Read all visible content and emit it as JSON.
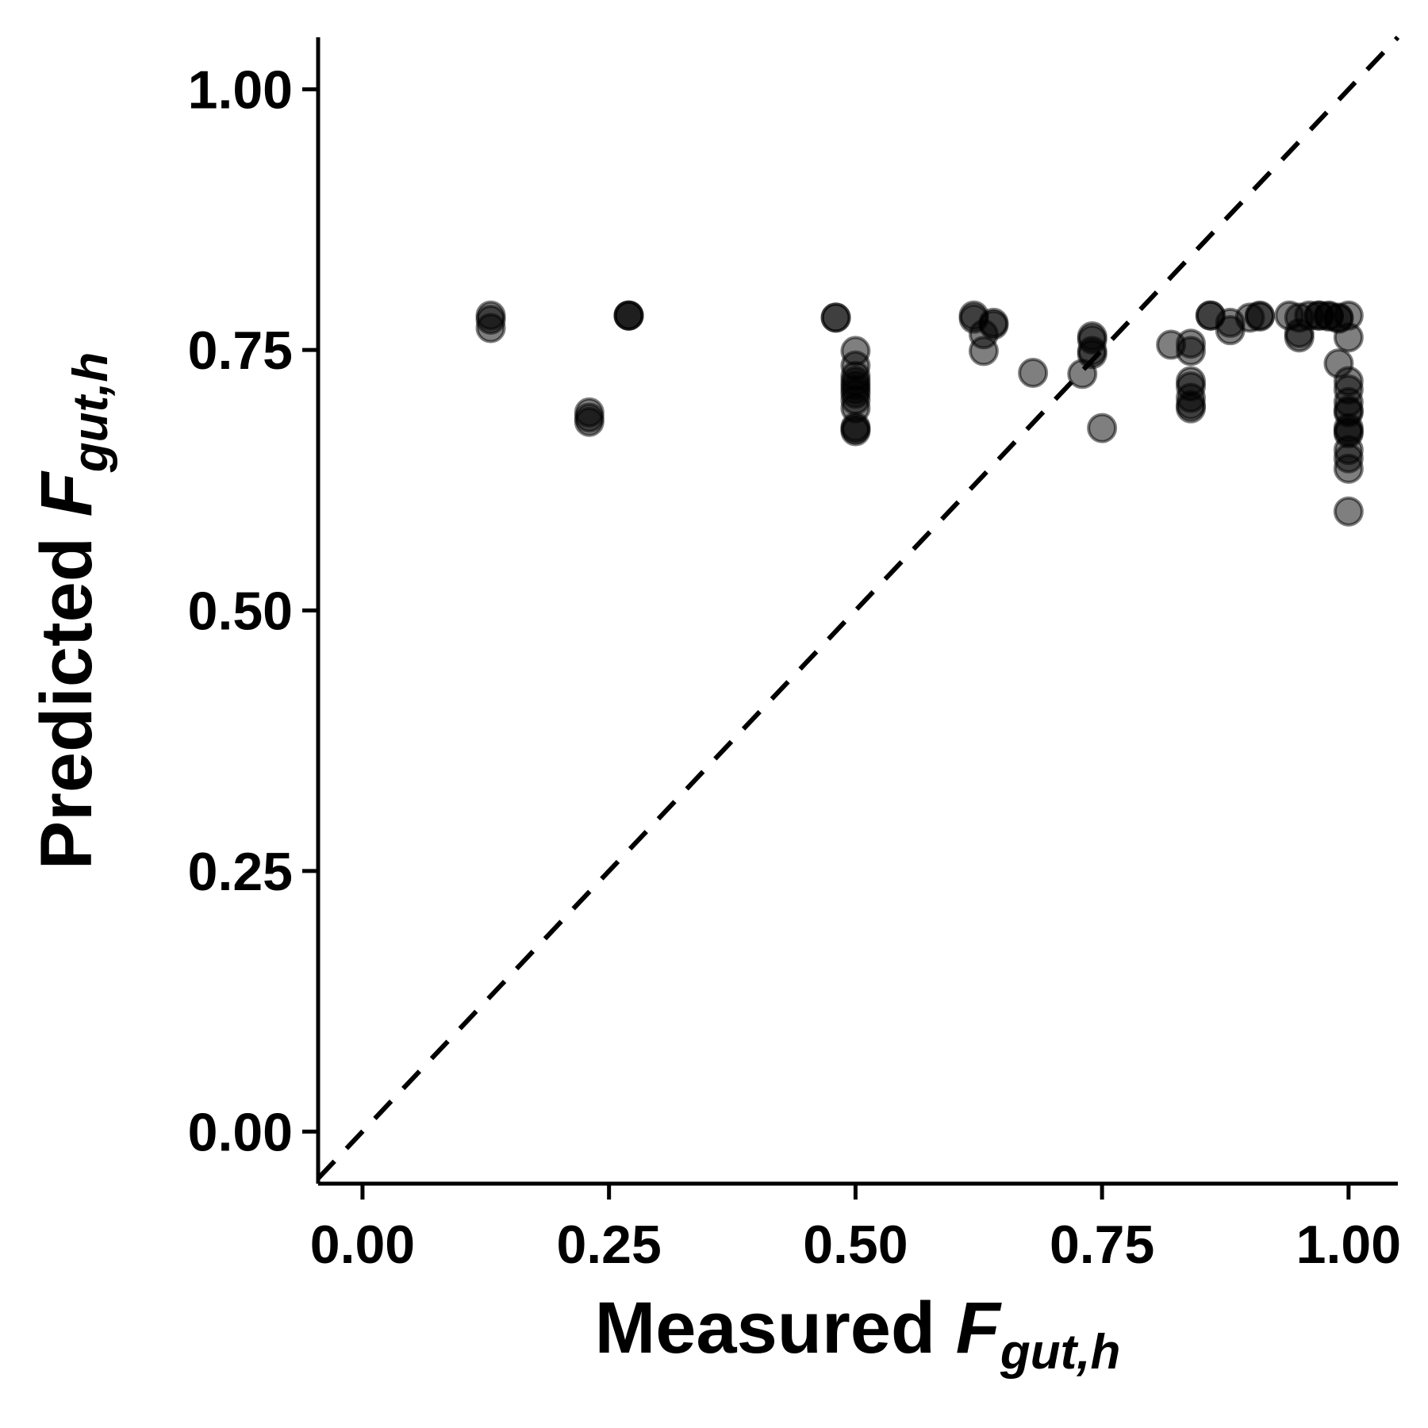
{
  "chart_data": {
    "type": "scatter",
    "xlabel": {
      "prefix": "Measured ",
      "symbol": "F",
      "subscript": "gut,h"
    },
    "ylabel": {
      "prefix": "Predicted ",
      "symbol": "F",
      "subscript": "gut,h"
    },
    "xlim": [
      -0.045,
      1.05
    ],
    "ylim": [
      -0.05,
      1.05
    ],
    "x_ticks": [
      "0.00",
      "0.25",
      "0.50",
      "0.75",
      "1.00"
    ],
    "y_ticks": [
      "0.00",
      "0.25",
      "0.50",
      "0.75",
      "1.00"
    ],
    "x_tick_values": [
      0,
      0.25,
      0.5,
      0.75,
      1
    ],
    "y_tick_values": [
      0,
      0.25,
      0.5,
      0.75,
      1
    ],
    "reference_line": {
      "type": "identity",
      "style": "dashed",
      "from": [
        -0.045,
        -0.045
      ],
      "to": [
        1.05,
        1.05
      ]
    },
    "grid": false,
    "point_color": "#000000",
    "point_opacity": 0.5,
    "points": [
      [
        0.13,
        0.783
      ],
      [
        0.13,
        0.779
      ],
      [
        0.13,
        0.771
      ],
      [
        0.23,
        0.69
      ],
      [
        0.23,
        0.685
      ],
      [
        0.23,
        0.681
      ],
      [
        0.27,
        0.783
      ],
      [
        0.27,
        0.783
      ],
      [
        0.27,
        0.783
      ],
      [
        0.48,
        0.781
      ],
      [
        0.48,
        0.781
      ],
      [
        0.5,
        0.749
      ],
      [
        0.5,
        0.735
      ],
      [
        0.5,
        0.725
      ],
      [
        0.5,
        0.72
      ],
      [
        0.5,
        0.716
      ],
      [
        0.5,
        0.712
      ],
      [
        0.5,
        0.708
      ],
      [
        0.5,
        0.702
      ],
      [
        0.5,
        0.694
      ],
      [
        0.5,
        0.676
      ],
      [
        0.5,
        0.674
      ],
      [
        0.5,
        0.672
      ],
      [
        0.62,
        0.783
      ],
      [
        0.62,
        0.78
      ],
      [
        0.63,
        0.765
      ],
      [
        0.63,
        0.749
      ],
      [
        0.64,
        0.774
      ],
      [
        0.64,
        0.776
      ],
      [
        0.68,
        0.728
      ],
      [
        0.73,
        0.727
      ],
      [
        0.74,
        0.763
      ],
      [
        0.74,
        0.76
      ],
      [
        0.74,
        0.749
      ],
      [
        0.74,
        0.746
      ],
      [
        0.75,
        0.675
      ],
      [
        0.82,
        0.755
      ],
      [
        0.84,
        0.756
      ],
      [
        0.84,
        0.749
      ],
      [
        0.84,
        0.72
      ],
      [
        0.84,
        0.715
      ],
      [
        0.84,
        0.704
      ],
      [
        0.84,
        0.697
      ],
      [
        0.84,
        0.694
      ],
      [
        0.86,
        0.783
      ],
      [
        0.86,
        0.783
      ],
      [
        0.88,
        0.776
      ],
      [
        0.88,
        0.769
      ],
      [
        0.9,
        0.781
      ],
      [
        0.91,
        0.782
      ],
      [
        0.91,
        0.783
      ],
      [
        0.94,
        0.783
      ],
      [
        0.95,
        0.781
      ],
      [
        0.95,
        0.766
      ],
      [
        0.95,
        0.762
      ],
      [
        0.96,
        0.783
      ],
      [
        0.97,
        0.783
      ],
      [
        0.97,
        0.783
      ],
      [
        0.98,
        0.783
      ],
      [
        0.98,
        0.782
      ],
      [
        0.99,
        0.781
      ],
      [
        0.99,
        0.737
      ],
      [
        0.99,
        0.78
      ],
      [
        1.0,
        0.783
      ],
      [
        1.0,
        0.762
      ],
      [
        1.0,
        0.72
      ],
      [
        1.0,
        0.712
      ],
      [
        1.0,
        0.7
      ],
      [
        1.0,
        0.692
      ],
      [
        1.0,
        0.69
      ],
      [
        1.0,
        0.675
      ],
      [
        1.0,
        0.672
      ],
      [
        1.0,
        0.67
      ],
      [
        1.0,
        0.654
      ],
      [
        1.0,
        0.646
      ],
      [
        1.0,
        0.636
      ],
      [
        1.0,
        0.595
      ]
    ]
  }
}
